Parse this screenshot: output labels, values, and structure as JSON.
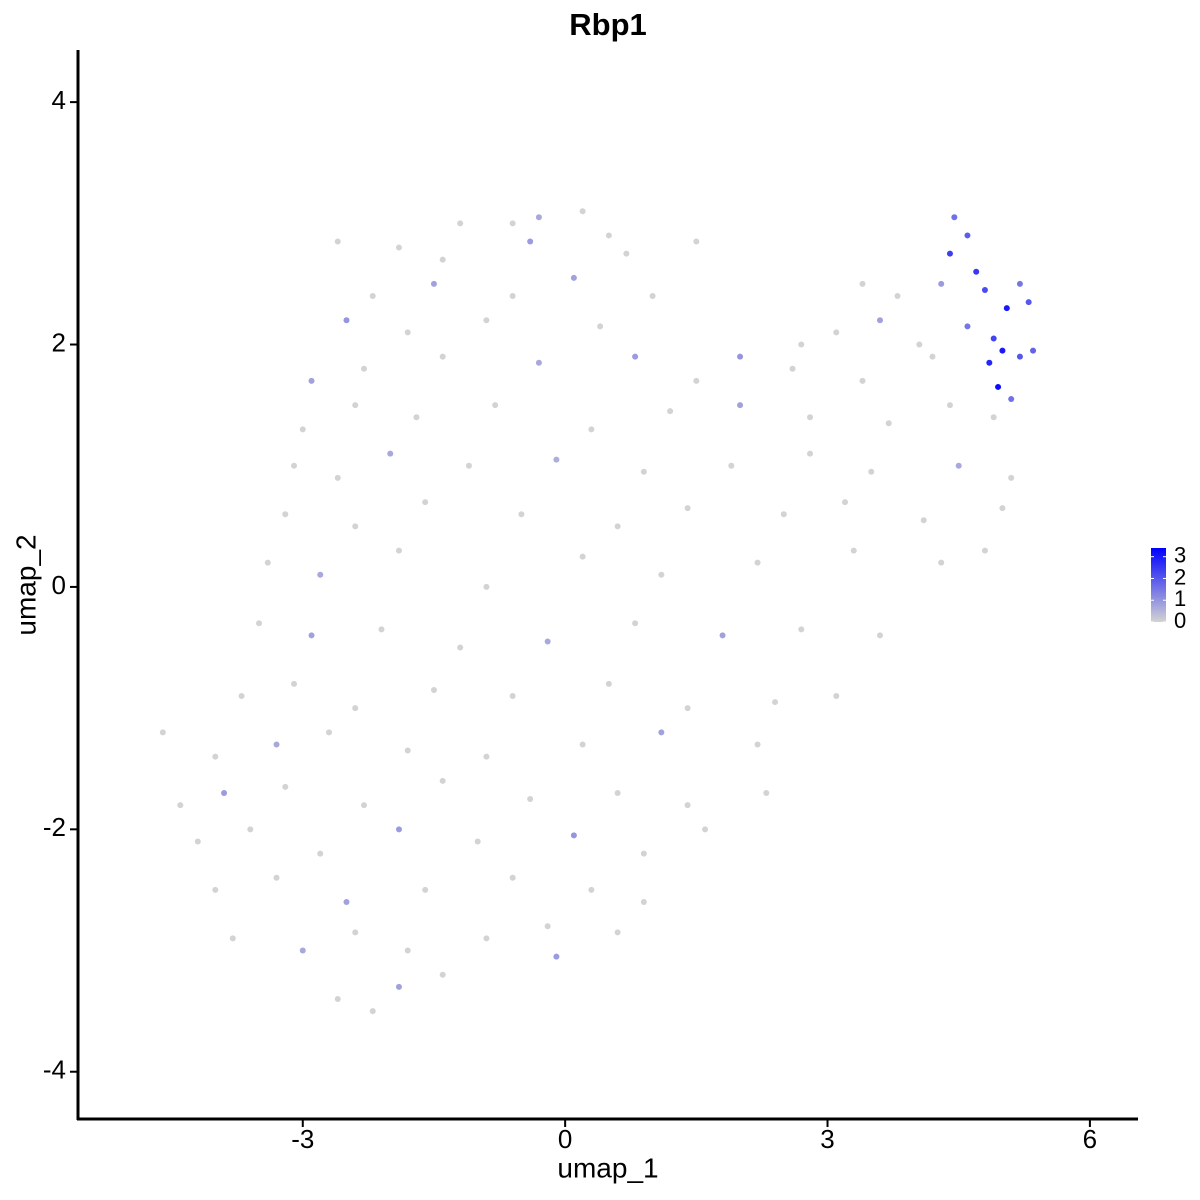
{
  "chart_data": {
    "type": "scatter",
    "title": "Rbp1",
    "x_label": "umap_1",
    "y_label": "umap_2",
    "xlim": [
      -5.57,
      6.55
    ],
    "ylim": [
      -4.39,
      4.43
    ],
    "xticks": [
      -3,
      0,
      3,
      6
    ],
    "yticks": [
      -4,
      -2,
      0,
      2,
      4
    ],
    "color_scale": {
      "low": "#d3d3d3",
      "high": "#0000ff",
      "lim": [
        0,
        3.4
      ],
      "ticks": [
        0,
        1,
        2,
        3
      ]
    },
    "series": [
      {
        "x": [
          -1.2,
          -0.6,
          -0.3,
          0.2,
          0.5,
          4.45,
          -2.6,
          -1.9,
          -1.4,
          -0.4,
          0.7,
          1.5,
          4.6,
          4.4,
          4.7,
          -2.2,
          -1.5,
          -0.6,
          0.1,
          1.0,
          3.4,
          3.8,
          4.3,
          4.8,
          5.2,
          5.3,
          5.05,
          -2.5,
          -1.8,
          -0.9,
          0.4,
          2.7,
          3.1,
          3.6,
          4.05,
          4.6,
          4.9,
          5.35,
          -2.9,
          -2.3,
          -1.4,
          -0.3,
          0.8,
          1.5,
          2.0,
          2.6,
          3.4,
          4.2,
          4.85,
          5.0,
          4.95,
          5.2,
          -3.0,
          -2.4,
          -1.7,
          -0.8,
          0.3,
          1.2,
          2.0,
          2.8,
          3.7,
          4.4,
          5.1,
          4.9,
          -3.1,
          -2.6,
          -2.0,
          -1.1,
          -0.1,
          0.9,
          1.9,
          2.8,
          3.5,
          4.5,
          5.1,
          -3.2,
          -2.4,
          -1.6,
          -0.5,
          0.6,
          1.4,
          2.5,
          3.2,
          4.1,
          5.0,
          -3.4,
          -2.8,
          -1.9,
          -0.9,
          0.2,
          1.1,
          2.2,
          3.3,
          4.3,
          4.8,
          -3.5,
          -2.9,
          -2.1,
          -1.2,
          -0.2,
          0.8,
          1.8,
          2.7,
          3.6,
          -3.7,
          -3.1,
          -2.4,
          -1.5,
          -0.6,
          0.5,
          1.4,
          2.4,
          3.1,
          -4.6,
          -4.0,
          -3.3,
          -2.7,
          -1.8,
          -0.9,
          0.2,
          1.1,
          2.2,
          -4.4,
          -3.9,
          -3.2,
          -2.3,
          -1.4,
          -0.4,
          0.6,
          1.4,
          2.3,
          -4.2,
          -3.6,
          -2.8,
          -1.9,
          -1.0,
          0.1,
          0.9,
          1.6,
          -4.0,
          -3.3,
          -2.5,
          -1.6,
          -0.6,
          0.3,
          0.9,
          -3.8,
          -3.0,
          -2.4,
          -1.8,
          -0.9,
          -0.2,
          0.6,
          -2.6,
          -2.2,
          -1.4,
          -1.9,
          -0.1
        ],
        "y": [
          3.0,
          3.0,
          3.05,
          3.1,
          2.9,
          3.05,
          2.85,
          2.8,
          2.7,
          2.85,
          2.75,
          2.85,
          2.9,
          2.75,
          2.6,
          2.4,
          2.5,
          2.4,
          2.55,
          2.4,
          2.5,
          2.4,
          2.5,
          2.45,
          2.5,
          2.35,
          2.3,
          2.2,
          2.1,
          2.2,
          2.15,
          2.0,
          2.1,
          2.2,
          2.0,
          2.15,
          2.05,
          1.95,
          1.7,
          1.8,
          1.9,
          1.85,
          1.9,
          1.7,
          1.9,
          1.8,
          1.7,
          1.9,
          1.85,
          1.95,
          1.65,
          1.9,
          1.3,
          1.5,
          1.4,
          1.5,
          1.3,
          1.45,
          1.5,
          1.4,
          1.35,
          1.5,
          1.55,
          1.4,
          1.0,
          0.9,
          1.1,
          1.0,
          1.05,
          0.95,
          1.0,
          1.1,
          0.95,
          1.0,
          0.9,
          0.6,
          0.5,
          0.7,
          0.6,
          0.5,
          0.65,
          0.6,
          0.7,
          0.55,
          0.65,
          0.2,
          0.1,
          0.3,
          0.0,
          0.25,
          0.1,
          0.2,
          0.3,
          0.2,
          0.3,
          -0.3,
          -0.4,
          -0.35,
          -0.5,
          -0.45,
          -0.3,
          -0.4,
          -0.35,
          -0.4,
          -0.9,
          -0.8,
          -1.0,
          -0.85,
          -0.9,
          -0.8,
          -1.0,
          -0.95,
          -0.9,
          -1.2,
          -1.4,
          -1.3,
          -1.2,
          -1.35,
          -1.4,
          -1.3,
          -1.2,
          -1.3,
          -1.8,
          -1.7,
          -1.65,
          -1.8,
          -1.6,
          -1.75,
          -1.7,
          -1.8,
          -1.7,
          -2.1,
          -2.0,
          -2.2,
          -2.0,
          -2.1,
          -2.05,
          -2.2,
          -2.0,
          -2.5,
          -2.4,
          -2.6,
          -2.5,
          -2.4,
          -2.5,
          -2.6,
          -2.9,
          -3.0,
          -2.85,
          -3.0,
          -2.9,
          -2.8,
          -2.85,
          -3.4,
          -3.5,
          -3.2,
          -3.3,
          -3.05
        ],
        "values": [
          0,
          0,
          0.7,
          0,
          0,
          1.6,
          0,
          0,
          0,
          0.9,
          0,
          0,
          1.9,
          2.4,
          2.5,
          0,
          0.8,
          0,
          0.8,
          0,
          0,
          0,
          0.9,
          2.2,
          1.5,
          2.0,
          3.0,
          1.0,
          0,
          0,
          0,
          0,
          0,
          0.8,
          0,
          1.5,
          2.3,
          1.8,
          0.8,
          0,
          0,
          0.7,
          0.9,
          0,
          1.0,
          0,
          0,
          0,
          2.8,
          3.0,
          3.2,
          2.0,
          0,
          0,
          0,
          0,
          0,
          0,
          0.8,
          0,
          0,
          0,
          1.6,
          0,
          0,
          0,
          0.7,
          0,
          0.6,
          0,
          0,
          0,
          0,
          0.7,
          0,
          0,
          0,
          0,
          0,
          0,
          0,
          0,
          0,
          0,
          0,
          0,
          0.7,
          0,
          0,
          0,
          0,
          0,
          0,
          0,
          0,
          0,
          0.8,
          0,
          0,
          0.7,
          0,
          0.8,
          0,
          0,
          0,
          0,
          0,
          0,
          0,
          0,
          0,
          0,
          0,
          0,
          0,
          0.7,
          0,
          0,
          0,
          0,
          0.8,
          0,
          0,
          0.9,
          0,
          0,
          0,
          0,
          0,
          0,
          0,
          0,
          0,
          0,
          0.9,
          0,
          1.0,
          0,
          0,
          0,
          0,
          0.8,
          0,
          0,
          0,
          0,
          0,
          0.7,
          0,
          0,
          0,
          0,
          0,
          0,
          0,
          0,
          0.8,
          0.9
        ]
      }
    ]
  }
}
